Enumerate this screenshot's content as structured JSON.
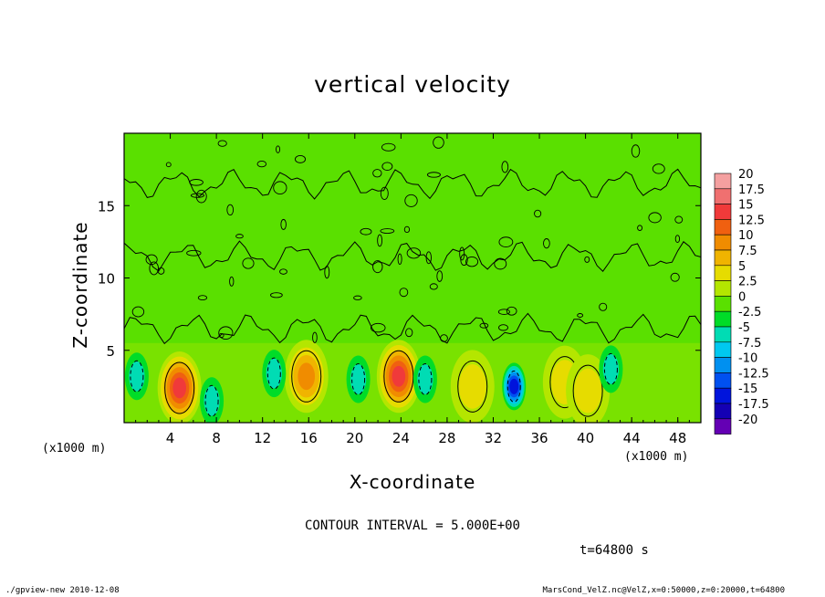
{
  "chart_data": {
    "type": "heatmap",
    "title": "vertical velocity",
    "xlabel": "X-coordinate",
    "ylabel": "Z-coordinate",
    "x_unit_left": "(x1000 m)",
    "x_unit_right": "(x1000 m)",
    "xlim": [
      0,
      50
    ],
    "ylim": [
      0,
      20
    ],
    "x_ticks": [
      "4",
      "8",
      "12",
      "16",
      "20",
      "24",
      "28",
      "32",
      "36",
      "40",
      "44",
      "48"
    ],
    "x_tick_values": [
      4,
      8,
      12,
      16,
      20,
      24,
      28,
      32,
      36,
      40,
      44,
      48
    ],
    "y_ticks": [
      "5",
      "10",
      "15"
    ],
    "y_tick_values": [
      5,
      10,
      15
    ],
    "contour_interval": "CONTOUR INTERVAL = 5.000E+00",
    "colorbar": {
      "labels": [
        "20",
        "17.5",
        "15",
        "12.5",
        "10",
        "7.5",
        "5",
        "2.5",
        "0",
        "-2.5",
        "-5",
        "-7.5",
        "-10",
        "-12.5",
        "-15",
        "-17.5",
        "-20"
      ],
      "colors": [
        "#f4a0a0",
        "#f07070",
        "#f03a3a",
        "#f06010",
        "#f08c00",
        "#f0b400",
        "#e6dc00",
        "#b4e600",
        "#5ae000",
        "#00dc28",
        "#00dcb4",
        "#00c8f0",
        "#0090f0",
        "#0050f0",
        "#0014dc",
        "#1400b4",
        "#6400b4"
      ]
    },
    "features": [
      {
        "x": 4.8,
        "z": 2.4,
        "value": 15,
        "sign": "positive"
      },
      {
        "x": 15.8,
        "z": 3.2,
        "value": 10,
        "sign": "positive"
      },
      {
        "x": 23.8,
        "z": 3.2,
        "value": 15,
        "sign": "positive"
      },
      {
        "x": 30.2,
        "z": 2.5,
        "value": 5,
        "sign": "positive"
      },
      {
        "x": 38.2,
        "z": 2.8,
        "value": 5,
        "sign": "positive"
      },
      {
        "x": 40.2,
        "z": 2.2,
        "value": 5,
        "sign": "positive"
      },
      {
        "x": 1.1,
        "z": 3.2,
        "value": -5,
        "sign": "negative"
      },
      {
        "x": 7.6,
        "z": 1.5,
        "value": -5,
        "sign": "negative"
      },
      {
        "x": 13.0,
        "z": 3.4,
        "value": -5,
        "sign": "negative"
      },
      {
        "x": 20.3,
        "z": 3.0,
        "value": -5,
        "sign": "negative"
      },
      {
        "x": 26.1,
        "z": 3.0,
        "value": -5,
        "sign": "negative"
      },
      {
        "x": 33.8,
        "z": 2.5,
        "value": -15,
        "sign": "negative"
      },
      {
        "x": 42.2,
        "z": 3.7,
        "value": -5,
        "sign": "negative"
      }
    ]
  },
  "annotations": {
    "timestamp": "t=64800 s",
    "footer_left": "./gpview-new  2010-12-08",
    "footer_right": "MarsCond_VelZ.nc@VelZ,x=0:50000,z=0:20000,t=64800"
  }
}
